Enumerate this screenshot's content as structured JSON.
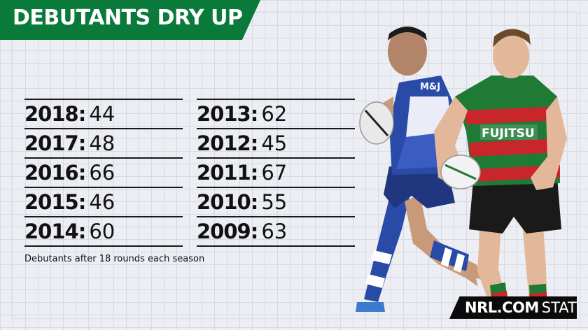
{
  "title": "DEBUTANTS DRY UP",
  "left_column": [
    {
      "year": "2018",
      "value": "44"
    },
    {
      "year": "2017",
      "value": "48"
    },
    {
      "year": "2016",
      "value": "66"
    },
    {
      "year": "2015",
      "value": "46"
    },
    {
      "year": "2014",
      "value": "60"
    }
  ],
  "right_column": [
    {
      "year": "2013",
      "value": "62"
    },
    {
      "year": "2012",
      "value": "45"
    },
    {
      "year": "2011",
      "value": "67"
    },
    {
      "year": "2010",
      "value": "55"
    },
    {
      "year": "2009",
      "value": "63"
    }
  ],
  "caption": "Debutants after 18 rounds each season",
  "players": {
    "left_jersey_sponsor": "M&J",
    "right_jersey_sponsor": "FUJITSU"
  },
  "brand": {
    "primary": "NRL.COM",
    "secondary": "STATS"
  },
  "colors": {
    "banner_green": "#0a7a3a",
    "bulldogs_blue": "#2a4aa8",
    "rabbitohs_green": "#1e7a35",
    "rabbitohs_red": "#c8262b"
  }
}
